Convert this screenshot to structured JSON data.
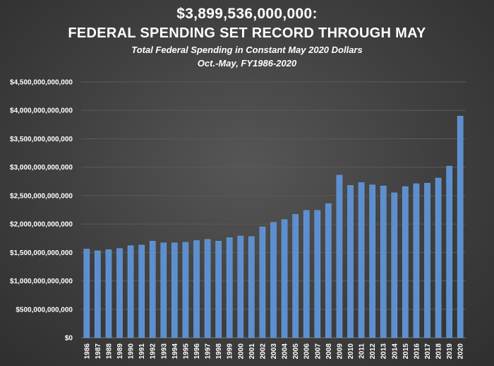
{
  "chart_data": {
    "type": "bar",
    "title": "$3,899,536,000,000:",
    "title_line2": "FEDERAL SPENDING SET RECORD THROUGH MAY",
    "subtitle": "Total Federal Spending in Constant May 2020 Dollars",
    "subtitle_line2": "Oct.-May, FY1986-2020",
    "xlabel": "",
    "ylabel": "",
    "ylim": [
      0,
      4500000000000
    ],
    "yticks": [
      0,
      500000000000,
      1000000000000,
      1500000000000,
      2000000000000,
      2500000000000,
      3000000000000,
      3500000000000,
      4000000000000,
      4500000000000
    ],
    "ytick_labels": [
      "$0",
      "$500,000,000,000",
      "$1,000,000,000,000",
      "$1,500,000,000,000",
      "$2,000,000,000,000",
      "$2,500,000,000,000",
      "$3,000,000,000,000",
      "$3,500,000,000,000",
      "$4,000,000,000,000",
      "$4,500,000,000,000"
    ],
    "categories": [
      "1986",
      "1987",
      "1988",
      "1989",
      "1990",
      "1991",
      "1992",
      "1993",
      "1994",
      "1995",
      "1996",
      "1997",
      "1998",
      "1999",
      "2000",
      "2001",
      "2002",
      "2003",
      "2004",
      "2005",
      "2006",
      "2007",
      "2008",
      "2009",
      "2010",
      "2011",
      "2012",
      "2013",
      "2014",
      "2015",
      "2016",
      "2017",
      "2018",
      "2019",
      "2020"
    ],
    "values": [
      1560000000000,
      1530000000000,
      1550000000000,
      1570000000000,
      1620000000000,
      1630000000000,
      1700000000000,
      1670000000000,
      1670000000000,
      1680000000000,
      1710000000000,
      1730000000000,
      1700000000000,
      1760000000000,
      1790000000000,
      1780000000000,
      1950000000000,
      2030000000000,
      2080000000000,
      2170000000000,
      2240000000000,
      2240000000000,
      2360000000000,
      2860000000000,
      2680000000000,
      2730000000000,
      2690000000000,
      2670000000000,
      2550000000000,
      2660000000000,
      2710000000000,
      2720000000000,
      2810000000000,
      3020000000000,
      3899536000000
    ],
    "grid": true,
    "colors": {
      "bar": "#5b8fd0",
      "bar_edge": "#7aa6de",
      "grid": "#5a5a5a",
      "text": "#ffffff"
    }
  }
}
